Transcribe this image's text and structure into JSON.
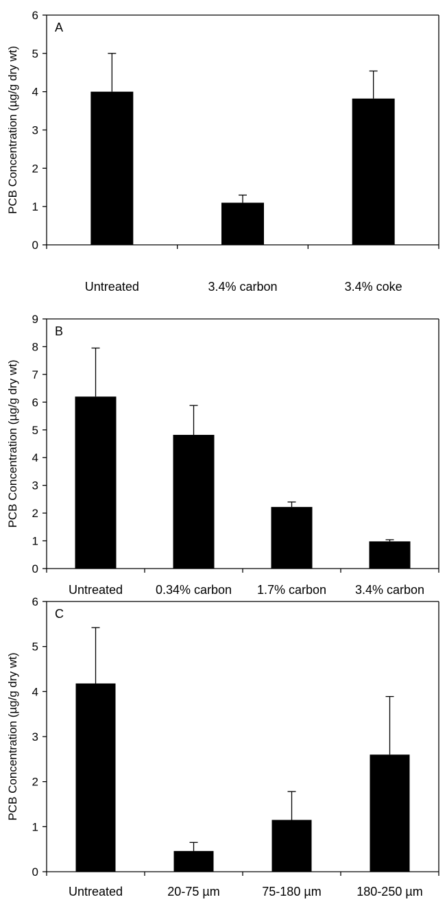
{
  "chart_data": [
    {
      "type": "bar",
      "panel": "A",
      "categories": [
        "Untreated",
        "3.4% carbon",
        "3.4% coke"
      ],
      "values": [
        4.0,
        1.1,
        3.82
      ],
      "errors": [
        1.0,
        0.2,
        0.72
      ],
      "ylabel": "PCB Concentration (µg/g dry wt)",
      "ylim": [
        0,
        6
      ],
      "yticks": [
        "0",
        "1",
        "2",
        "3",
        "4",
        "5",
        "6"
      ]
    },
    {
      "type": "bar",
      "panel": "B",
      "categories": [
        "Untreated",
        "0.34% carbon",
        "1.7% carbon",
        "3.4% carbon"
      ],
      "values": [
        6.2,
        4.82,
        2.22,
        0.98
      ],
      "errors": [
        1.75,
        1.06,
        0.18,
        0.06
      ],
      "ylabel": "PCB Concentration (µg/g dry wt)",
      "ylim": [
        0,
        9
      ],
      "yticks": [
        "0",
        "1",
        "2",
        "3",
        "4",
        "5",
        "6",
        "7",
        "8",
        "9"
      ]
    },
    {
      "type": "bar",
      "panel": "C",
      "categories": [
        "Untreated",
        "20-75 µm",
        "75-180 µm",
        "180-250 µm"
      ],
      "values": [
        4.18,
        0.46,
        1.15,
        2.6
      ],
      "errors": [
        1.24,
        0.19,
        0.63,
        1.29
      ],
      "ylabel": "PCB Concentration (µg/g dry wt)",
      "ylim": [
        0,
        6
      ],
      "yticks": [
        "0",
        "1",
        "2",
        "3",
        "4",
        "5",
        "6"
      ]
    }
  ]
}
